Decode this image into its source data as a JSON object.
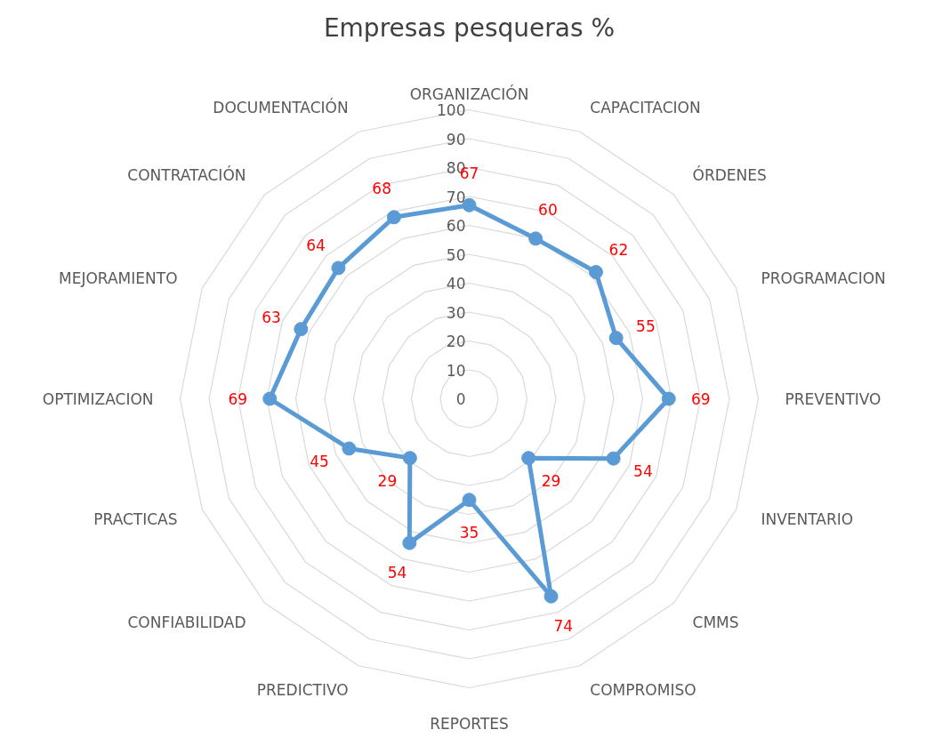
{
  "chart_data": {
    "type": "radar",
    "title": "Empresas pesqueras %",
    "categories": [
      "ORGANIZACIÓN",
      "CAPACITACION",
      "ÓRDENES",
      "PROGRAMACION",
      "PREVENTIVO",
      "INVENTARIO",
      "CMMS",
      "COMPROMISO",
      "REPORTES",
      "PREDICTIVO",
      "CONFIABILIDAD",
      "PRACTICAS",
      "OPTIMIZACION",
      "MEJORAMIENTO",
      "CONTRATACIÓN",
      "DOCUMENTACIÓN"
    ],
    "series": [
      {
        "color": "#5b9bd5",
        "values": [
          67,
          60,
          62,
          55,
          69,
          54,
          29,
          74,
          35,
          54,
          29,
          45,
          69,
          63,
          64,
          68
        ]
      }
    ],
    "ylim": [
      0,
      100
    ],
    "yticks": [
      0,
      10,
      20,
      30,
      40,
      50,
      60,
      70,
      80,
      90,
      100
    ],
    "grid": true,
    "data_labels": true,
    "marker": "circle",
    "line_style": "solid"
  }
}
